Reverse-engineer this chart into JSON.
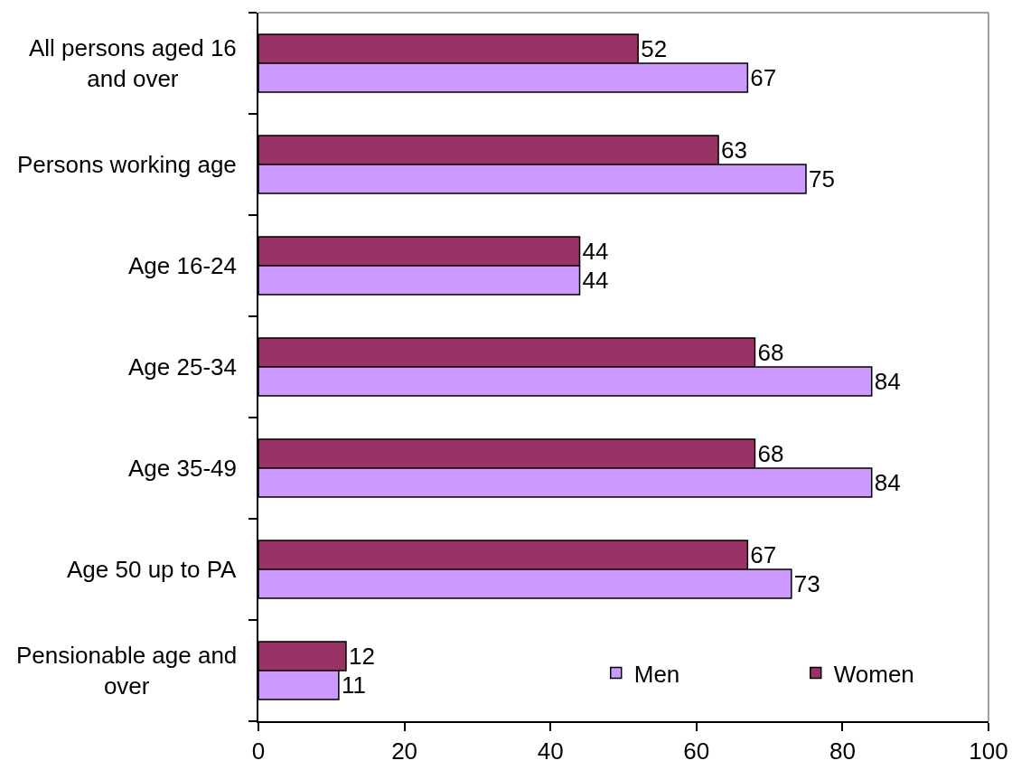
{
  "chart_data": {
    "type": "bar",
    "orientation": "horizontal",
    "categories": [
      "All persons aged 16 and over",
      "Persons working age",
      "Age 16-24",
      "Age 25-34",
      "Age 35-49",
      "Age 50 up to PA",
      "Pensionable age and over"
    ],
    "series": [
      {
        "name": "Men",
        "color": "#cc99ff",
        "values": [
          67,
          75,
          44,
          84,
          84,
          73,
          11
        ]
      },
      {
        "name": "Women",
        "color": "#993366",
        "values": [
          52,
          63,
          44,
          68,
          68,
          67,
          12
        ]
      }
    ],
    "xlim": [
      0,
      100
    ],
    "xticks": [
      0,
      20,
      40,
      60,
      80,
      100
    ],
    "data_labels": true,
    "grid": false,
    "legend": "bottom right"
  }
}
